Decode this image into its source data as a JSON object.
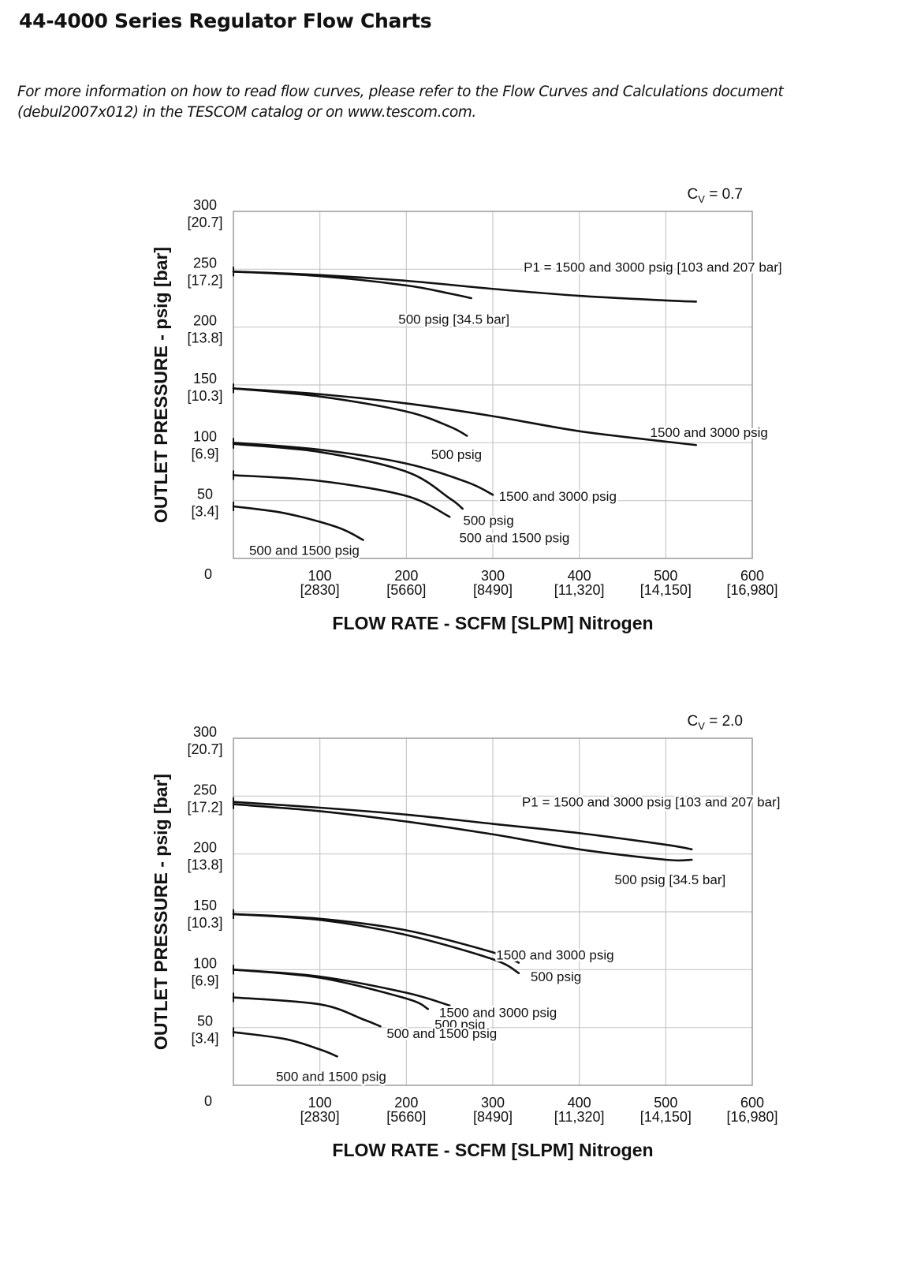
{
  "page": {
    "title": "44-4000 Series Regulator Flow Charts",
    "intro": "For more information on how to read flow curves, please refer to the Flow Curves and Calculations document (debul2007x012) in the TESCOM catalog or on www.tescom.com."
  },
  "chart_data": [
    {
      "type": "line",
      "title": "Cv = 0.7",
      "cv_prefix": "C",
      "cv_sub": "V",
      "cv_value": " = 0.7",
      "xlabel": "FLOW RATE - SCFM [SLPM] Nitrogen",
      "ylabel": "OUTLET PRESSURE - psig [bar]",
      "xlim": [
        0,
        600
      ],
      "ylim": [
        0,
        300
      ],
      "grid": true,
      "x_ticks": [
        {
          "value": 100,
          "line1": "100",
          "line2": "[2830]"
        },
        {
          "value": 200,
          "line1": "200",
          "line2": "[5660]"
        },
        {
          "value": 300,
          "line1": "300",
          "line2": "[8490]"
        },
        {
          "value": 400,
          "line1": "400",
          "line2": "[11,320]"
        },
        {
          "value": 500,
          "line1": "500",
          "line2": "[14,150]"
        },
        {
          "value": 600,
          "line1": "600",
          "line2": "[16,980]"
        }
      ],
      "y_ticks": [
        {
          "value": 0,
          "line1": "0",
          "line2": ""
        },
        {
          "value": 50,
          "line1": "50",
          "line2": "[3.4]"
        },
        {
          "value": 100,
          "line1": "100",
          "line2": "[6.9]"
        },
        {
          "value": 150,
          "line1": "150",
          "line2": "[10.3]"
        },
        {
          "value": 200,
          "line1": "200",
          "line2": "[13.8]"
        },
        {
          "value": 250,
          "line1": "250",
          "line2": "[17.2]"
        },
        {
          "value": 300,
          "line1": "300",
          "line2": "[20.7]"
        }
      ],
      "series": [
        {
          "name": "P1 = 1500 and 3000 psig [103 and 207 bar]",
          "x": [
            0,
            100,
            200,
            300,
            400,
            500,
            535
          ],
          "y": [
            248,
            245,
            240,
            233,
            227,
            223,
            222
          ]
        },
        {
          "name": "500 psig [34.5 bar]",
          "x": [
            0,
            100,
            200,
            250,
            275
          ],
          "y": [
            248,
            244,
            236,
            229,
            225
          ]
        },
        {
          "name": "1500 and 3000 psig",
          "x": [
            0,
            100,
            200,
            300,
            400,
            500,
            535
          ],
          "y": [
            147,
            142,
            134,
            123,
            110,
            101,
            98
          ]
        },
        {
          "name": "500 psig",
          "x": [
            0,
            100,
            200,
            250,
            270
          ],
          "y": [
            147,
            140,
            127,
            114,
            106
          ]
        },
        {
          "name": "1500 and 3000 psig",
          "x": [
            0,
            100,
            200,
            270,
            300
          ],
          "y": [
            100,
            94,
            82,
            66,
            55
          ]
        },
        {
          "name": "500 psig",
          "x": [
            0,
            100,
            200,
            250,
            265
          ],
          "y": [
            99,
            92,
            75,
            52,
            43
          ]
        },
        {
          "name": "500 and 1500 psig",
          "x": [
            0,
            100,
            200,
            250
          ],
          "y": [
            72,
            67,
            54,
            36
          ]
        },
        {
          "name": "500 and 1500 psig",
          "x": [
            0,
            60,
            120,
            150
          ],
          "y": [
            45,
            39,
            27,
            16
          ]
        }
      ],
      "labels": [
        {
          "text": "P1 = 1500 and 3000 psig [103 and 207 bar]",
          "x": 485,
          "y": 252
        },
        {
          "text": "500 psig [34.5 bar]",
          "x": 255,
          "y": 207
        },
        {
          "text": "1500 and 3000 psig",
          "x": 550,
          "y": 109
        },
        {
          "text": "500 psig",
          "x": 258,
          "y": 90
        },
        {
          "text": "1500 and 3000 psig",
          "x": 375,
          "y": 54
        },
        {
          "text": "500 psig",
          "x": 295,
          "y": 33
        },
        {
          "text": "500 and 1500 psig",
          "x": 325,
          "y": 18
        },
        {
          "text": "500 and 1500 psig",
          "x": 82,
          "y": 7
        }
      ]
    },
    {
      "type": "line",
      "title": "Cv = 2.0",
      "cv_prefix": "C",
      "cv_sub": "V",
      "cv_value": " = 2.0",
      "xlabel": "FLOW RATE - SCFM [SLPM] Nitrogen",
      "ylabel": "OUTLET PRESSURE - psig [bar]",
      "xlim": [
        0,
        600
      ],
      "ylim": [
        0,
        300
      ],
      "grid": true,
      "x_ticks": [
        {
          "value": 100,
          "line1": "100",
          "line2": "[2830]"
        },
        {
          "value": 200,
          "line1": "200",
          "line2": "[5660]"
        },
        {
          "value": 300,
          "line1": "300",
          "line2": "[8490]"
        },
        {
          "value": 400,
          "line1": "400",
          "line2": "[11,320]"
        },
        {
          "value": 500,
          "line1": "500",
          "line2": "[14,150]"
        },
        {
          "value": 600,
          "line1": "600",
          "line2": "[16,980]"
        }
      ],
      "y_ticks": [
        {
          "value": 0,
          "line1": "0",
          "line2": ""
        },
        {
          "value": 50,
          "line1": "50",
          "line2": "[3.4]"
        },
        {
          "value": 100,
          "line1": "100",
          "line2": "[6.9]"
        },
        {
          "value": 150,
          "line1": "150",
          "line2": "[10.3]"
        },
        {
          "value": 200,
          "line1": "200",
          "line2": "[13.8]"
        },
        {
          "value": 250,
          "line1": "250",
          "line2": "[17.2]"
        },
        {
          "value": 300,
          "line1": "300",
          "line2": "[20.7]"
        }
      ],
      "series": [
        {
          "name": "P1 = 1500 and 3000 psig [103 and 207 bar]",
          "x": [
            0,
            100,
            200,
            300,
            400,
            500,
            530
          ],
          "y": [
            245,
            240,
            234,
            226,
            218,
            208,
            204
          ]
        },
        {
          "name": "500 psig [34.5 bar]",
          "x": [
            0,
            100,
            200,
            300,
            400,
            500,
            530
          ],
          "y": [
            243,
            237,
            228,
            217,
            204,
            195,
            195
          ]
        },
        {
          "name": "1500 and 3000 psig",
          "x": [
            0,
            100,
            200,
            300,
            330
          ],
          "y": [
            148,
            144,
            134,
            115,
            106
          ]
        },
        {
          "name": "500 psig",
          "x": [
            0,
            100,
            200,
            300,
            330
          ],
          "y": [
            148,
            143,
            130,
            109,
            97
          ]
        },
        {
          "name": "1500 and 3000 psig",
          "x": [
            0,
            100,
            200,
            250
          ],
          "y": [
            100,
            94,
            80,
            69
          ]
        },
        {
          "name": "500 psig",
          "x": [
            0,
            100,
            200,
            225
          ],
          "y": [
            100,
            93,
            75,
            66
          ]
        },
        {
          "name": "500 and 1500 psig",
          "x": [
            0,
            100,
            150,
            170
          ],
          "y": [
            76,
            70,
            57,
            51
          ]
        },
        {
          "name": "500 and 1500 psig",
          "x": [
            0,
            60,
            100,
            120
          ],
          "y": [
            46,
            40,
            31,
            25
          ]
        }
      ],
      "labels": [
        {
          "text": "P1 = 1500 and 3000 psig [103 and 207 bar]",
          "x": 483,
          "y": 245
        },
        {
          "text": "500 psig [34.5 bar]",
          "x": 505,
          "y": 178
        },
        {
          "text": "1500 and 3000 psig",
          "x": 372,
          "y": 113
        },
        {
          "text": "500 psig",
          "x": 373,
          "y": 94
        },
        {
          "text": "1500 and 3000 psig",
          "x": 306,
          "y": 63
        },
        {
          "text": "500 psig",
          "x": 262,
          "y": 53
        },
        {
          "text": "500 and 1500 psig",
          "x": 241,
          "y": 45
        },
        {
          "text": "500 and 1500 psig",
          "x": 113,
          "y": 8
        }
      ]
    }
  ]
}
